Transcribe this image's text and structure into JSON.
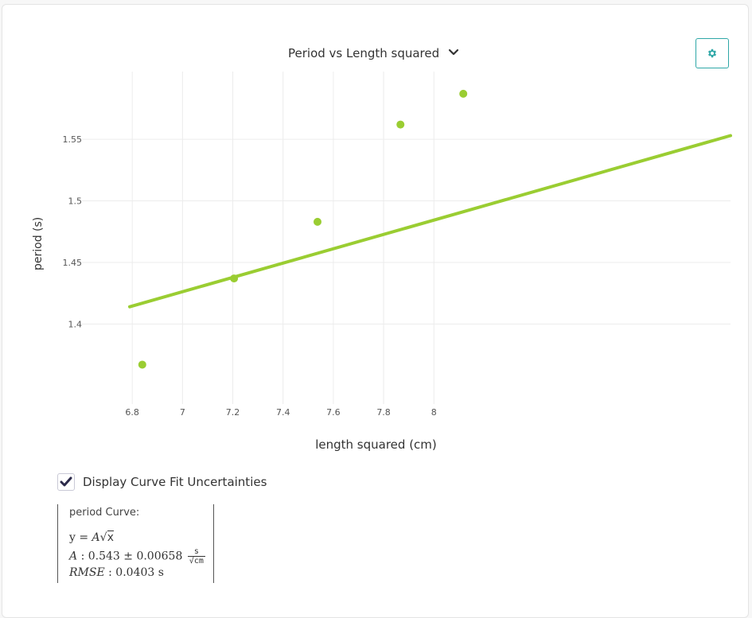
{
  "chart_data": {
    "type": "scatter",
    "title": "Period vs Length squared",
    "xlabel": "length squared (cm)",
    "ylabel": "period (s)",
    "xlim": [
      6.6,
      9.18
    ],
    "ylim": [
      1.335,
      1.605
    ],
    "x_ticks": [
      "6.8",
      "7",
      "7.2",
      "7.4",
      "7.6",
      "7.8",
      "8"
    ],
    "x_tick_values": [
      6.8,
      7.0,
      7.2,
      7.4,
      7.6,
      7.8,
      8.0
    ],
    "y_ticks": [
      "1.4",
      "1.45",
      "1.5",
      "1.55"
    ],
    "y_tick_values": [
      1.4,
      1.45,
      1.5,
      1.55
    ],
    "grid": true,
    "points": [
      {
        "x": 6.84,
        "y": 1.367
      },
      {
        "x": 7.205,
        "y": 1.437
      },
      {
        "x": 7.537,
        "y": 1.483
      },
      {
        "x": 7.867,
        "y": 1.562
      },
      {
        "x": 8.117,
        "y": 1.587
      }
    ],
    "fit_line": {
      "x": [
        6.79,
        9.18
      ],
      "y": [
        1.414,
        1.553
      ]
    },
    "point_color": "#9acd32",
    "line_color": "#9acd32"
  },
  "controls": {
    "display_uncertainties_label": "Display Curve Fit Uncertainties",
    "display_uncertainties_checked": true,
    "settings_icon": "gear-icon",
    "dropdown_icon": "chevron-down-icon"
  },
  "fit": {
    "title": "period Curve:",
    "equation_lhs": "y = ",
    "equation_rhs_param": "A",
    "equation_rhs_var": "x",
    "param_name": "A",
    "param_value": " : 0.543 ± 0.00658 ",
    "param_unit_num": "s",
    "param_unit_den": "cm",
    "rmse_name": "RMSE",
    "rmse_value": " : 0.0403 s"
  },
  "colors": {
    "accent": "#2fa7a7",
    "check": "#2c2a4a",
    "series": "#9acd32"
  }
}
